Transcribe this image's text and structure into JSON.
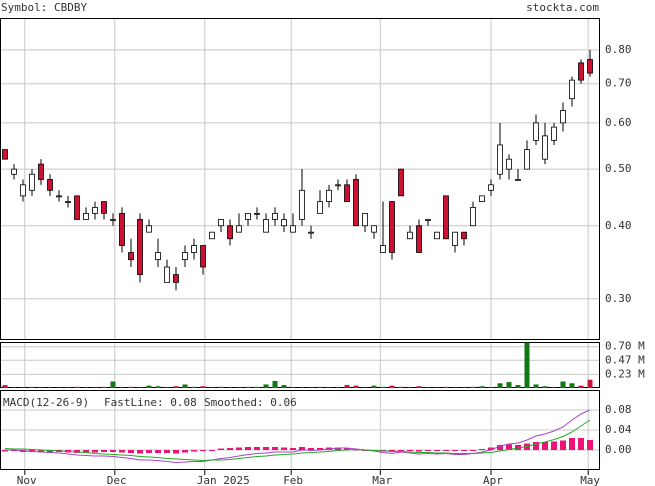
{
  "chart_data": {
    "type": "candlestick",
    "symbol": "Symbol: CBDBY",
    "site": "stockta.com",
    "categories": [
      null,
      null,
      null,
      null,
      null,
      null,
      null,
      null,
      null,
      null,
      null,
      null,
      null,
      null,
      null,
      null,
      null,
      null,
      null,
      null,
      null,
      null,
      null,
      null,
      null,
      null,
      null,
      null,
      null,
      null,
      null,
      null,
      null,
      null,
      null,
      null,
      null,
      null,
      null,
      null,
      null,
      null,
      null,
      null,
      null,
      null,
      null,
      null,
      null,
      null,
      null,
      null,
      null,
      null,
      null,
      null,
      null,
      null,
      null,
      null,
      null,
      null,
      null,
      null,
      null,
      null
    ],
    "xticks": [
      {
        "value": 2.2,
        "label": "Nov"
      },
      {
        "value": 12.2,
        "label": "Dec"
      },
      {
        "value": 22.2,
        "label": "Jan 2025"
      },
      {
        "value": 31.8,
        "label": "Feb"
      },
      {
        "value": 41.7,
        "label": "Mar"
      },
      {
        "value": 54,
        "label": "Apr"
      },
      {
        "value": 64.8,
        "label": "May"
      }
    ],
    "log_scale": true,
    "grid": true,
    "up_color": "#ffffff",
    "down_color": "#cc1133",
    "ylim": [
      0.255,
      0.907
    ],
    "yticks": [
      {
        "value": 0.3,
        "label": "0.30"
      },
      {
        "value": 0.4,
        "label": "0.40"
      },
      {
        "value": 0.5,
        "label": "0.50"
      },
      {
        "value": 0.6,
        "label": "0.60"
      },
      {
        "value": 0.7,
        "label": "0.70"
      },
      {
        "value": 0.8,
        "label": "0.80"
      }
    ],
    "ohlc": [
      [
        0.54,
        0.54,
        0.52,
        0.52
      ],
      [
        0.49,
        0.51,
        0.48,
        0.5
      ],
      [
        0.45,
        0.48,
        0.44,
        0.47
      ],
      [
        0.46,
        0.5,
        0.45,
        0.49
      ],
      [
        0.51,
        0.52,
        0.47,
        0.48
      ],
      [
        0.48,
        0.49,
        0.45,
        0.46
      ],
      [
        0.45,
        0.46,
        0.44,
        0.45
      ],
      [
        0.44,
        0.45,
        0.43,
        0.44
      ],
      [
        0.45,
        0.45,
        0.41,
        0.41
      ],
      [
        0.41,
        0.43,
        0.41,
        0.42
      ],
      [
        0.42,
        0.44,
        0.41,
        0.43
      ],
      [
        0.44,
        0.44,
        0.41,
        0.42
      ],
      [
        0.41,
        0.42,
        0.4,
        0.41
      ],
      [
        0.42,
        0.43,
        0.36,
        0.37
      ],
      [
        0.36,
        0.38,
        0.34,
        0.35
      ],
      [
        0.41,
        0.42,
        0.32,
        0.33
      ],
      [
        0.39,
        0.41,
        0.39,
        0.4
      ],
      [
        0.35,
        0.38,
        0.34,
        0.36
      ],
      [
        0.32,
        0.35,
        0.32,
        0.34
      ],
      [
        0.33,
        0.34,
        0.31,
        0.32
      ],
      [
        0.35,
        0.37,
        0.34,
        0.36
      ],
      [
        0.36,
        0.38,
        0.35,
        0.37
      ],
      [
        0.37,
        0.37,
        0.33,
        0.34
      ],
      [
        0.38,
        0.39,
        0.38,
        0.39
      ],
      [
        0.4,
        0.41,
        0.39,
        0.41
      ],
      [
        0.4,
        0.41,
        0.37,
        0.38
      ],
      [
        0.39,
        0.42,
        0.39,
        0.4
      ],
      [
        0.41,
        0.42,
        0.4,
        0.42
      ],
      [
        0.42,
        0.43,
        0.41,
        0.42
      ],
      [
        0.39,
        0.42,
        0.39,
        0.41
      ],
      [
        0.41,
        0.43,
        0.4,
        0.42
      ],
      [
        0.4,
        0.42,
        0.39,
        0.41
      ],
      [
        0.39,
        0.42,
        0.39,
        0.4
      ],
      [
        0.41,
        0.5,
        0.4,
        0.46
      ],
      [
        0.39,
        0.4,
        0.38,
        0.39
      ],
      [
        0.42,
        0.46,
        0.42,
        0.44
      ],
      [
        0.44,
        0.47,
        0.43,
        0.46
      ],
      [
        0.47,
        0.48,
        0.46,
        0.47
      ],
      [
        0.47,
        0.48,
        0.44,
        0.44
      ],
      [
        0.48,
        0.49,
        0.4,
        0.4
      ],
      [
        0.4,
        0.42,
        0.39,
        0.42
      ],
      [
        0.39,
        0.4,
        0.38,
        0.4
      ],
      [
        0.36,
        0.44,
        0.36,
        0.37
      ],
      [
        0.44,
        0.44,
        0.35,
        0.36
      ],
      [
        0.5,
        0.5,
        0.45,
        0.45
      ],
      [
        0.38,
        0.4,
        0.38,
        0.39
      ],
      [
        0.4,
        0.41,
        0.36,
        0.36
      ],
      [
        0.41,
        0.41,
        0.4,
        0.41
      ],
      [
        0.38,
        0.39,
        0.38,
        0.39
      ],
      [
        0.45,
        0.45,
        0.38,
        0.38
      ],
      [
        0.37,
        0.39,
        0.36,
        0.39
      ],
      [
        0.39,
        0.39,
        0.37,
        0.38
      ],
      [
        0.4,
        0.44,
        0.4,
        0.43
      ],
      [
        0.44,
        0.45,
        0.44,
        0.45
      ],
      [
        0.46,
        0.48,
        0.45,
        0.47
      ],
      [
        0.49,
        0.6,
        0.48,
        0.55
      ],
      [
        0.5,
        0.53,
        0.48,
        0.52
      ],
      [
        0.48,
        0.5,
        0.48,
        0.48
      ],
      [
        0.5,
        0.56,
        0.5,
        0.54
      ],
      [
        0.56,
        0.62,
        0.55,
        0.6
      ],
      [
        0.52,
        0.6,
        0.51,
        0.57
      ],
      [
        0.56,
        0.6,
        0.55,
        0.59
      ],
      [
        0.6,
        0.65,
        0.58,
        0.63
      ],
      [
        0.66,
        0.72,
        0.64,
        0.71
      ],
      [
        0.76,
        0.77,
        0.7,
        0.71
      ],
      [
        0.77,
        0.8,
        0.72,
        0.73
      ]
    ],
    "volume": {
      "up_color": "#117711",
      "down_color": "#cc1133",
      "ylim": [
        0,
        0.78
      ],
      "yticks": [
        {
          "value": 0.23,
          "label": "0.23 M"
        },
        {
          "value": 0.47,
          "label": "0.47 M"
        },
        {
          "value": 0.7,
          "label": "0.70 M"
        }
      ],
      "values": [
        0.05,
        0.01,
        0.01,
        0.02,
        0.01,
        0.01,
        0.01,
        0.01,
        0.02,
        0.01,
        0.01,
        0.02,
        0.11,
        0.01,
        0.02,
        0.01,
        0.04,
        0.03,
        0.01,
        0.03,
        0.06,
        0.02,
        0.03,
        0.01,
        0.02,
        0.01,
        0.01,
        0.02,
        0.02,
        0.06,
        0.12,
        0.05,
        0.01,
        0.01,
        0.01,
        0.02,
        0.01,
        0.01,
        0.05,
        0.04,
        0.01,
        0.04,
        0.02,
        0.04,
        0.02,
        0.01,
        0.03,
        0.01,
        0.01,
        0.02,
        0.01,
        0.01,
        0.02,
        0.03,
        0.01,
        0.08,
        0.1,
        0.05,
        0.77,
        0.06,
        0.03,
        0.01,
        0.11,
        0.08,
        0.04,
        0.14
      ]
    },
    "macd": {
      "label": "MACD(12-26-9)",
      "fast_label": "FastLine: 0.08",
      "smoothed_label": "Smoothed: 0.06",
      "ylim": [
        -0.04,
        0.12
      ],
      "hist_color": "#ee1177",
      "yticks": [
        {
          "value": 0.0,
          "label": "0.00"
        },
        {
          "value": 0.04,
          "label": "0.04"
        },
        {
          "value": 0.08,
          "label": "0.08"
        }
      ],
      "series": [
        {
          "color": "#aa44cc",
          "values": [
            0.0,
            0.0,
            -0.002,
            -0.003,
            -0.004,
            -0.005,
            -0.006,
            -0.008,
            -0.01,
            -0.011,
            -0.012,
            -0.012,
            -0.013,
            -0.015,
            -0.017,
            -0.02,
            -0.02,
            -0.021,
            -0.023,
            -0.025,
            -0.024,
            -0.023,
            -0.023,
            -0.02,
            -0.017,
            -0.015,
            -0.012,
            -0.009,
            -0.007,
            -0.006,
            -0.004,
            -0.004,
            -0.004,
            0.0,
            -0.001,
            0.0,
            0.002,
            0.004,
            0.004,
            0.002,
            0.0,
            -0.002,
            -0.005,
            -0.007,
            -0.004,
            -0.006,
            -0.008,
            -0.007,
            -0.008,
            -0.007,
            -0.009,
            -0.009,
            -0.007,
            -0.004,
            0.0,
            0.008,
            0.012,
            0.014,
            0.02,
            0.028,
            0.032,
            0.038,
            0.046,
            0.06,
            0.072,
            0.08
          ]
        },
        {
          "color": "#22aa22",
          "values": [
            0.003,
            0.002,
            0.002,
            0.001,
            0.0,
            -0.001,
            -0.002,
            -0.003,
            -0.004,
            -0.005,
            -0.007,
            -0.008,
            -0.009,
            -0.01,
            -0.011,
            -0.013,
            -0.014,
            -0.015,
            -0.017,
            -0.018,
            -0.019,
            -0.02,
            -0.021,
            -0.02,
            -0.02,
            -0.019,
            -0.017,
            -0.015,
            -0.013,
            -0.012,
            -0.01,
            -0.009,
            -0.008,
            -0.006,
            -0.005,
            -0.004,
            -0.003,
            -0.001,
            0.0,
            0.001,
            0.0,
            -0.001,
            -0.002,
            -0.003,
            -0.003,
            -0.004,
            -0.005,
            -0.005,
            -0.006,
            -0.006,
            -0.007,
            -0.007,
            -0.007,
            -0.006,
            -0.005,
            -0.002,
            0.001,
            0.004,
            0.007,
            0.012,
            0.016,
            0.021,
            0.027,
            0.036,
            0.048,
            0.06
          ]
        }
      ],
      "histogram": [
        -0.003,
        -0.002,
        -0.004,
        -0.004,
        -0.004,
        -0.004,
        -0.004,
        -0.005,
        -0.006,
        -0.006,
        -0.005,
        -0.004,
        -0.004,
        -0.005,
        -0.006,
        -0.007,
        -0.006,
        -0.006,
        -0.006,
        -0.007,
        -0.005,
        -0.003,
        -0.002,
        0.0,
        0.003,
        0.004,
        0.005,
        0.006,
        0.006,
        0.006,
        0.006,
        0.005,
        0.004,
        0.006,
        0.004,
        0.004,
        0.005,
        0.005,
        0.004,
        0.001,
        0.0,
        -0.001,
        -0.003,
        -0.004,
        -0.001,
        -0.002,
        -0.003,
        -0.002,
        -0.002,
        -0.001,
        -0.002,
        -0.002,
        0.0,
        0.002,
        0.005,
        0.01,
        0.011,
        0.01,
        0.013,
        0.016,
        0.016,
        0.017,
        0.019,
        0.024,
        0.024,
        0.02
      ]
    }
  }
}
